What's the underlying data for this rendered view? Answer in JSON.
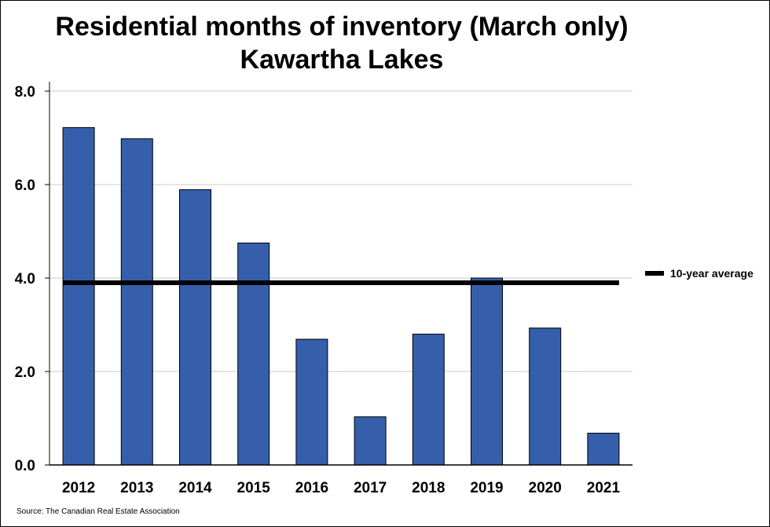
{
  "chart_data": {
    "type": "bar",
    "title": "Residential months of inventory (March only)",
    "subtitle": "Kawartha Lakes",
    "categories": [
      "2012",
      "2013",
      "2014",
      "2015",
      "2016",
      "2017",
      "2018",
      "2019",
      "2020",
      "2021"
    ],
    "values": [
      7.22,
      6.98,
      5.89,
      4.75,
      2.69,
      1.03,
      2.8,
      4.0,
      2.93,
      0.68
    ],
    "ylim": [
      0,
      8
    ],
    "yticks": [
      "0.0",
      "2.0",
      "4.0",
      "6.0",
      "8.0"
    ],
    "reference_line": {
      "name": "10-year average",
      "value": 3.9
    },
    "bar_color": "#355FAA",
    "grid": true,
    "legend_position": "right"
  },
  "source": "Source: The Canadian Real Estate Association"
}
